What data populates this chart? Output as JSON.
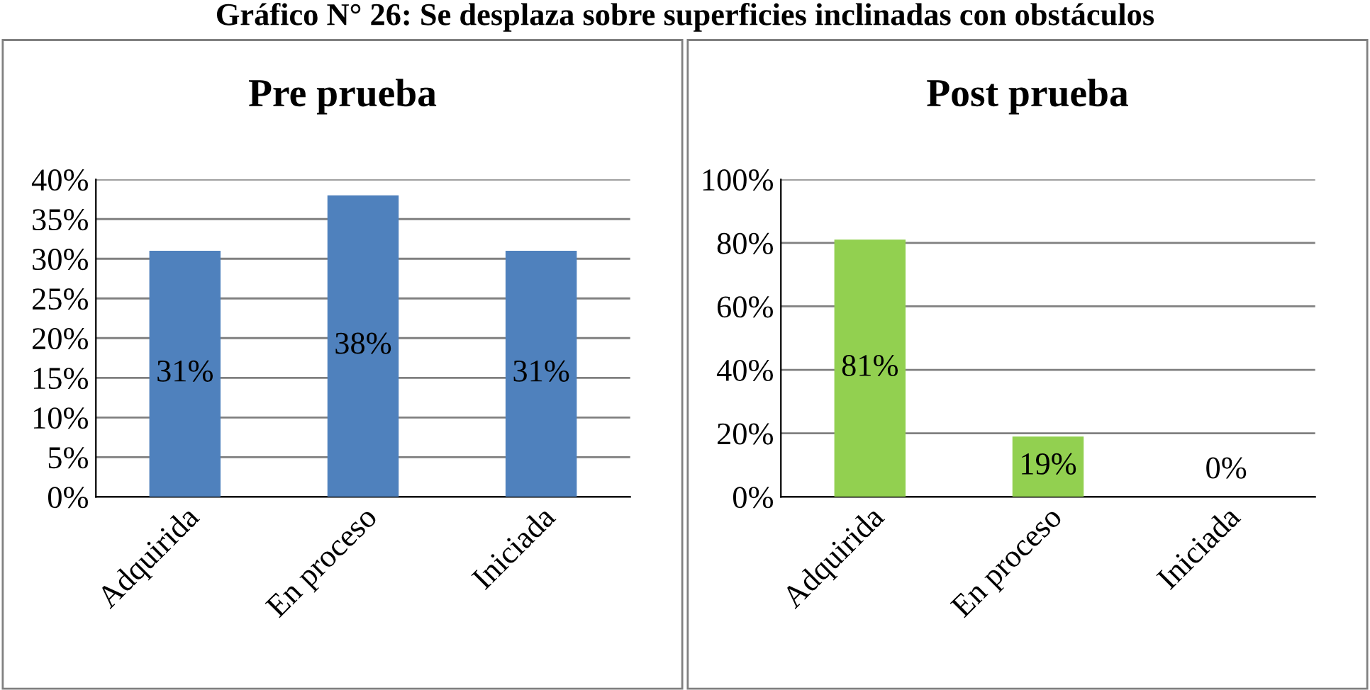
{
  "chart_data": [
    {
      "type": "bar",
      "title": "Pre prueba",
      "annotations": [
        "Gráfico N° 26: Se desplaza sobre superficies inclinadas con obstáculos"
      ],
      "categories": [
        "Adquirida",
        "En proceso",
        "Iniciada"
      ],
      "values": [
        31,
        38,
        31
      ],
      "value_labels": [
        "31%",
        "38%",
        "31%"
      ],
      "color": "#4f81bd",
      "ylim": [
        0,
        40
      ],
      "yticks": [
        {
          "value": 0,
          "label": "0%"
        },
        {
          "value": 5,
          "label": "5%"
        },
        {
          "value": 10,
          "label": "10%"
        },
        {
          "value": 15,
          "label": "15%"
        },
        {
          "value": 20,
          "label": "20%"
        },
        {
          "value": 25,
          "label": "25%"
        },
        {
          "value": 30,
          "label": "30%"
        },
        {
          "value": 35,
          "label": "35%"
        },
        {
          "value": 40,
          "label": "40%"
        }
      ],
      "grid": "y"
    },
    {
      "type": "bar",
      "title": "Post prueba",
      "categories": [
        "Adquirida",
        "En proceso",
        "Iniciada"
      ],
      "values": [
        81,
        19,
        0
      ],
      "value_labels": [
        "81%",
        "19%",
        "0%"
      ],
      "color": "#92d050",
      "ylim": [
        0,
        100
      ],
      "yticks": [
        {
          "value": 0,
          "label": "0%"
        },
        {
          "value": 20,
          "label": "20%"
        },
        {
          "value": 40,
          "label": "40%"
        },
        {
          "value": 60,
          "label": "60%"
        },
        {
          "value": 80,
          "label": "80%"
        },
        {
          "value": 100,
          "label": "100%"
        }
      ],
      "grid": "y"
    }
  ]
}
